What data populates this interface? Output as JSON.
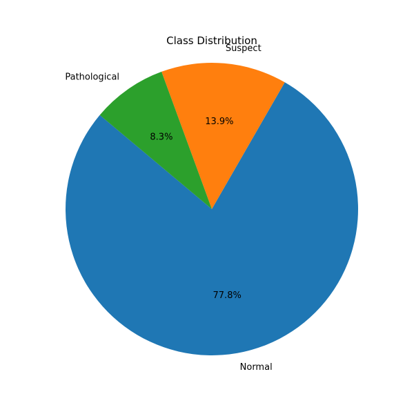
{
  "chart_data": {
    "type": "pie",
    "title": "Class Distribution",
    "categories": [
      "Normal",
      "Suspect",
      "Pathological"
    ],
    "values": [
      77.8,
      13.9,
      8.3
    ],
    "percent_labels": [
      "77.8%",
      "13.9%",
      "8.3%"
    ],
    "colors": [
      "#1f77b4",
      "#ff7f0e",
      "#2ca02c"
    ],
    "start_angle_deg": 140,
    "direction": "counterclockwise",
    "legend": "none"
  }
}
